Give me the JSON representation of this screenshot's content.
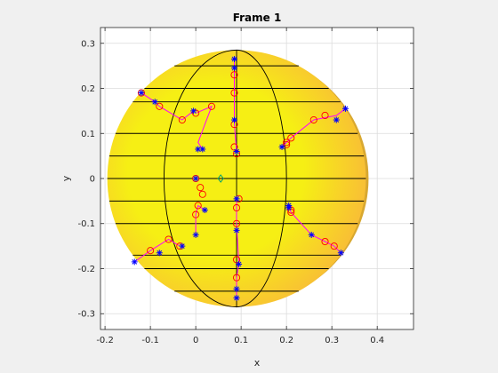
{
  "chart_data": {
    "type": "scatter",
    "title": "Frame 1",
    "xlabel": "x",
    "ylabel": "y",
    "xlim": [
      -0.21,
      0.48
    ],
    "ylim": [
      -0.335,
      0.335
    ],
    "xticks": [
      -0.2,
      -0.1,
      0,
      0.1,
      0.2,
      0.3,
      0.4
    ],
    "yticks": [
      -0.3,
      -0.2,
      -0.1,
      0,
      0.1,
      0.2,
      0.3
    ],
    "xtick_labels": [
      "-0.2",
      "-0.1",
      "0",
      "0.1",
      "0.2",
      "0.3",
      "0.4"
    ],
    "ytick_labels": [
      "-0.3",
      "-0.2",
      "-0.1",
      "0",
      "0.1",
      "0.2",
      "0.3"
    ],
    "grid": true,
    "legend": "none",
    "colors": {
      "background": "#f0f0f0",
      "axes": "#ffffff",
      "grid": "#dcdcdc",
      "disk_center": "#f6ef14",
      "disk_edge": "#f9b83a",
      "disk_shadow": "#d8a830",
      "mesh": "#000000",
      "track": "#ff00ff",
      "circle_marker": "#ff0000",
      "star_marker": "#0000ff",
      "center_marker": "#00a070"
    },
    "disk": {
      "center": [
        0.09,
        0.0
      ],
      "radius": 0.285,
      "latitude_lines_y": [
        -0.25,
        -0.2,
        -0.17,
        -0.1,
        -0.05,
        0,
        0.05,
        0.1,
        0.17,
        0.2,
        0.25
      ],
      "meridian_offsets": [
        -0.16,
        0,
        0.11
      ]
    },
    "center_marker": [
      0.055,
      0.0
    ],
    "series": [
      {
        "marker": "circle",
        "x": [
          -0.12,
          -0.08,
          -0.03,
          0.0,
          0.035,
          0.085,
          0.085,
          0.085,
          0.085,
          0.09,
          0.285,
          0.26,
          0.21,
          0.2,
          0.2,
          -0.1,
          -0.06,
          -0.035,
          0.0,
          0.005,
          0.01,
          0.015,
          0.09,
          0.09,
          0.09,
          0.09,
          0.095,
          0.285,
          0.305,
          0.21,
          0.21,
          0.0
        ],
        "y": [
          0.19,
          0.16,
          0.13,
          0.145,
          0.16,
          0.23,
          0.19,
          0.12,
          0.07,
          0.055,
          0.14,
          0.13,
          0.09,
          0.08,
          0.075,
          -0.16,
          -0.135,
          -0.15,
          -0.08,
          -0.06,
          -0.02,
          -0.035,
          -0.22,
          -0.18,
          -0.1,
          -0.065,
          -0.045,
          -0.14,
          -0.15,
          -0.075,
          -0.07,
          0.0
        ]
      },
      {
        "marker": "star",
        "x": [
          -0.12,
          -0.09,
          -0.005,
          0.085,
          0.085,
          0.085,
          0.09,
          0.33,
          0.31,
          0.19,
          -0.135,
          -0.08,
          -0.03,
          0.0,
          0.015,
          0.09,
          0.09,
          0.09,
          0.09,
          0.095,
          0.32,
          0.255,
          0.205,
          0.205,
          0.0,
          0.02,
          0.005
        ],
        "y": [
          0.19,
          0.17,
          0.15,
          0.265,
          0.245,
          0.13,
          0.06,
          0.155,
          0.13,
          0.07,
          -0.185,
          -0.165,
          -0.15,
          -0.125,
          0.065,
          -0.265,
          -0.245,
          -0.115,
          -0.045,
          -0.19,
          -0.165,
          -0.125,
          -0.06,
          -0.065,
          0.0,
          -0.07,
          0.065
        ]
      }
    ],
    "tracks": [
      {
        "x": [
          -0.12,
          -0.09,
          -0.08,
          -0.03,
          -0.005
        ],
        "y": [
          0.19,
          0.17,
          0.16,
          0.13,
          0.15
        ]
      },
      {
        "x": [
          0.0,
          0.035,
          0.005,
          0.015
        ],
        "y": [
          0.145,
          0.16,
          0.08,
          0.065
        ]
      },
      {
        "x": [
          0.085,
          0.085,
          0.085,
          0.085,
          0.09
        ],
        "y": [
          0.265,
          0.23,
          0.19,
          0.12,
          0.06
        ]
      },
      {
        "x": [
          0.33,
          0.31,
          0.285,
          0.26,
          0.21,
          0.19
        ],
        "y": [
          0.155,
          0.14,
          0.135,
          0.13,
          0.09,
          0.07
        ]
      },
      {
        "x": [
          -0.135,
          -0.1,
          -0.06,
          -0.035
        ],
        "y": [
          -0.185,
          -0.16,
          -0.135,
          -0.15
        ]
      },
      {
        "x": [
          0.0,
          0.0,
          0.005,
          0.02
        ],
        "y": [
          -0.125,
          -0.08,
          -0.06,
          -0.07
        ]
      },
      {
        "x": [
          0.09,
          0.09,
          0.095,
          0.09,
          0.09
        ],
        "y": [
          -0.265,
          -0.22,
          -0.19,
          -0.1,
          -0.045
        ]
      },
      {
        "x": [
          0.32,
          0.305,
          0.285,
          0.255,
          0.21,
          0.205
        ],
        "y": [
          -0.165,
          -0.15,
          -0.14,
          -0.125,
          -0.075,
          -0.06
        ]
      }
    ]
  }
}
